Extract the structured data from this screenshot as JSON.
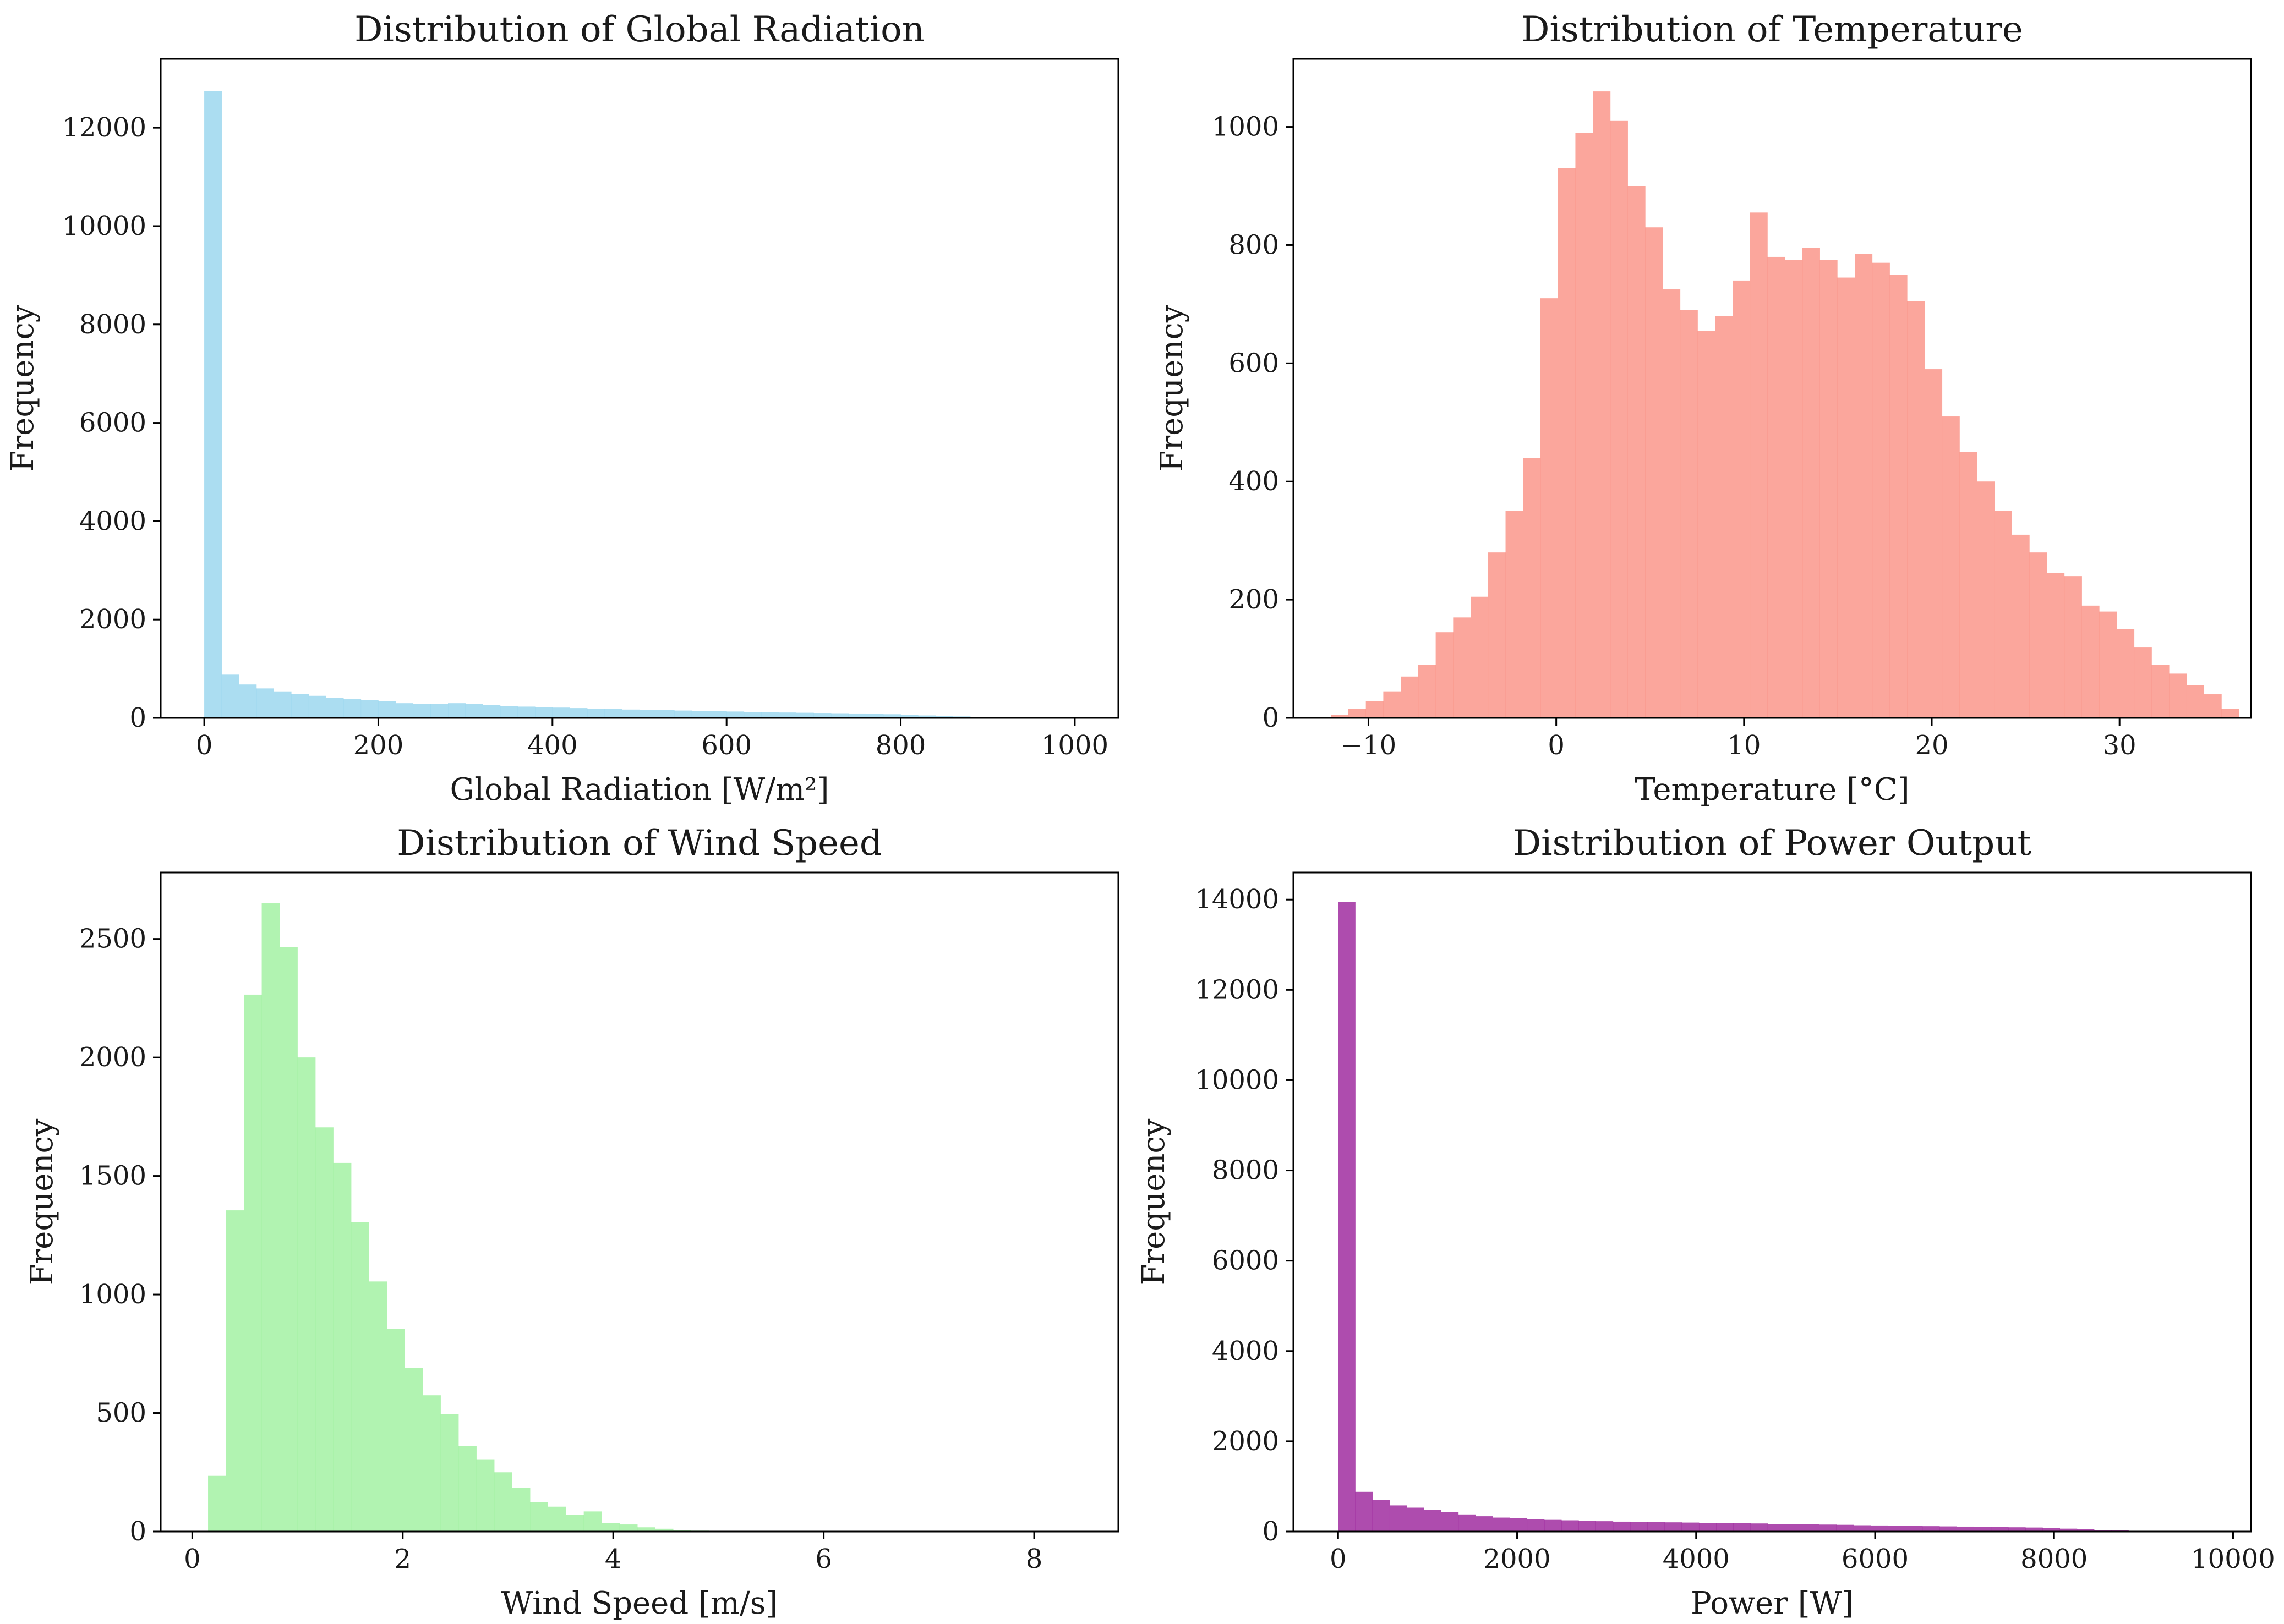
{
  "chart_data": [
    {
      "type": "bar",
      "title": "Distribution of Global Radiation",
      "xlabel": "Global Radiation [W/m²]",
      "ylabel": "Frequency",
      "color": "#87ceeb",
      "xlim": [
        -50,
        1050
      ],
      "ylim": [
        0,
        13400
      ],
      "xticks": [
        0,
        200,
        400,
        600,
        800,
        1000
      ],
      "yticks": [
        0,
        2000,
        4000,
        6000,
        8000,
        10000,
        12000
      ],
      "bin_start": 0,
      "bin_width": 20,
      "values": [
        12750,
        880,
        680,
        600,
        540,
        490,
        450,
        410,
        380,
        360,
        340,
        300,
        290,
        280,
        300,
        290,
        260,
        240,
        230,
        220,
        210,
        200,
        190,
        180,
        170,
        165,
        160,
        150,
        145,
        140,
        130,
        120,
        115,
        110,
        105,
        100,
        95,
        90,
        85,
        75,
        65,
        50,
        40,
        30,
        20,
        12,
        8,
        5,
        3,
        2
      ]
    },
    {
      "type": "bar",
      "title": "Distribution of Temperature",
      "xlabel": "Temperature [°C]",
      "ylabel": "Frequency",
      "color": "#fa8072",
      "xlim": [
        -14,
        37
      ],
      "ylim": [
        0,
        1115
      ],
      "xticks": [
        -10,
        0,
        10,
        20,
        30
      ],
      "yticks": [
        0,
        200,
        400,
        600,
        800,
        1000
      ],
      "bin_start": -12.0,
      "bin_width": 0.93,
      "values": [
        5,
        15,
        28,
        45,
        70,
        90,
        145,
        170,
        205,
        280,
        350,
        440,
        710,
        930,
        990,
        1060,
        1010,
        900,
        830,
        725,
        690,
        655,
        680,
        740,
        855,
        780,
        775,
        795,
        775,
        745,
        785,
        770,
        750,
        705,
        590,
        510,
        450,
        400,
        350,
        310,
        280,
        245,
        240,
        190,
        180,
        150,
        120,
        90,
        75,
        55,
        40,
        15
      ]
    },
    {
      "type": "bar",
      "title": "Distribution of Wind Speed",
      "xlabel": "Wind Speed [m/s]",
      "ylabel": "Frequency",
      "color": "#90ee90",
      "xlim": [
        -0.3,
        8.8
      ],
      "ylim": [
        0,
        2780
      ],
      "xticks": [
        0,
        2,
        4,
        6,
        8
      ],
      "yticks": [
        0,
        500,
        1000,
        1500,
        2000,
        2500
      ],
      "bin_start": 0.15,
      "bin_width": 0.17,
      "values": [
        235,
        1355,
        2265,
        2650,
        2465,
        2000,
        1705,
        1555,
        1305,
        1055,
        855,
        690,
        575,
        495,
        360,
        305,
        250,
        185,
        125,
        105,
        70,
        85,
        35,
        30,
        18,
        12,
        6,
        4,
        3,
        2,
        1,
        1,
        1,
        0,
        0,
        0,
        0,
        0,
        0,
        0,
        0,
        0,
        0,
        0,
        0,
        0,
        0,
        1
      ]
    },
    {
      "type": "bar",
      "title": "Distribution of Power Output",
      "xlabel": "Power [W]",
      "ylabel": "Frequency",
      "color": "#8b008b",
      "xlim": [
        -500,
        10200
      ],
      "ylim": [
        0,
        14600
      ],
      "xticks": [
        0,
        2000,
        4000,
        6000,
        8000,
        10000
      ],
      "yticks": [
        0,
        2000,
        4000,
        6000,
        8000,
        10000,
        12000,
        14000
      ],
      "bin_start": 0,
      "bin_width": 192,
      "values": [
        13950,
        880,
        700,
        580,
        530,
        480,
        430,
        380,
        340,
        310,
        300,
        280,
        260,
        250,
        240,
        230,
        220,
        215,
        210,
        205,
        200,
        195,
        190,
        185,
        180,
        170,
        165,
        160,
        155,
        150,
        140,
        135,
        130,
        125,
        120,
        115,
        110,
        105,
        100,
        95,
        90,
        80,
        65,
        50,
        35,
        25,
        15,
        10,
        5,
        3
      ]
    }
  ]
}
